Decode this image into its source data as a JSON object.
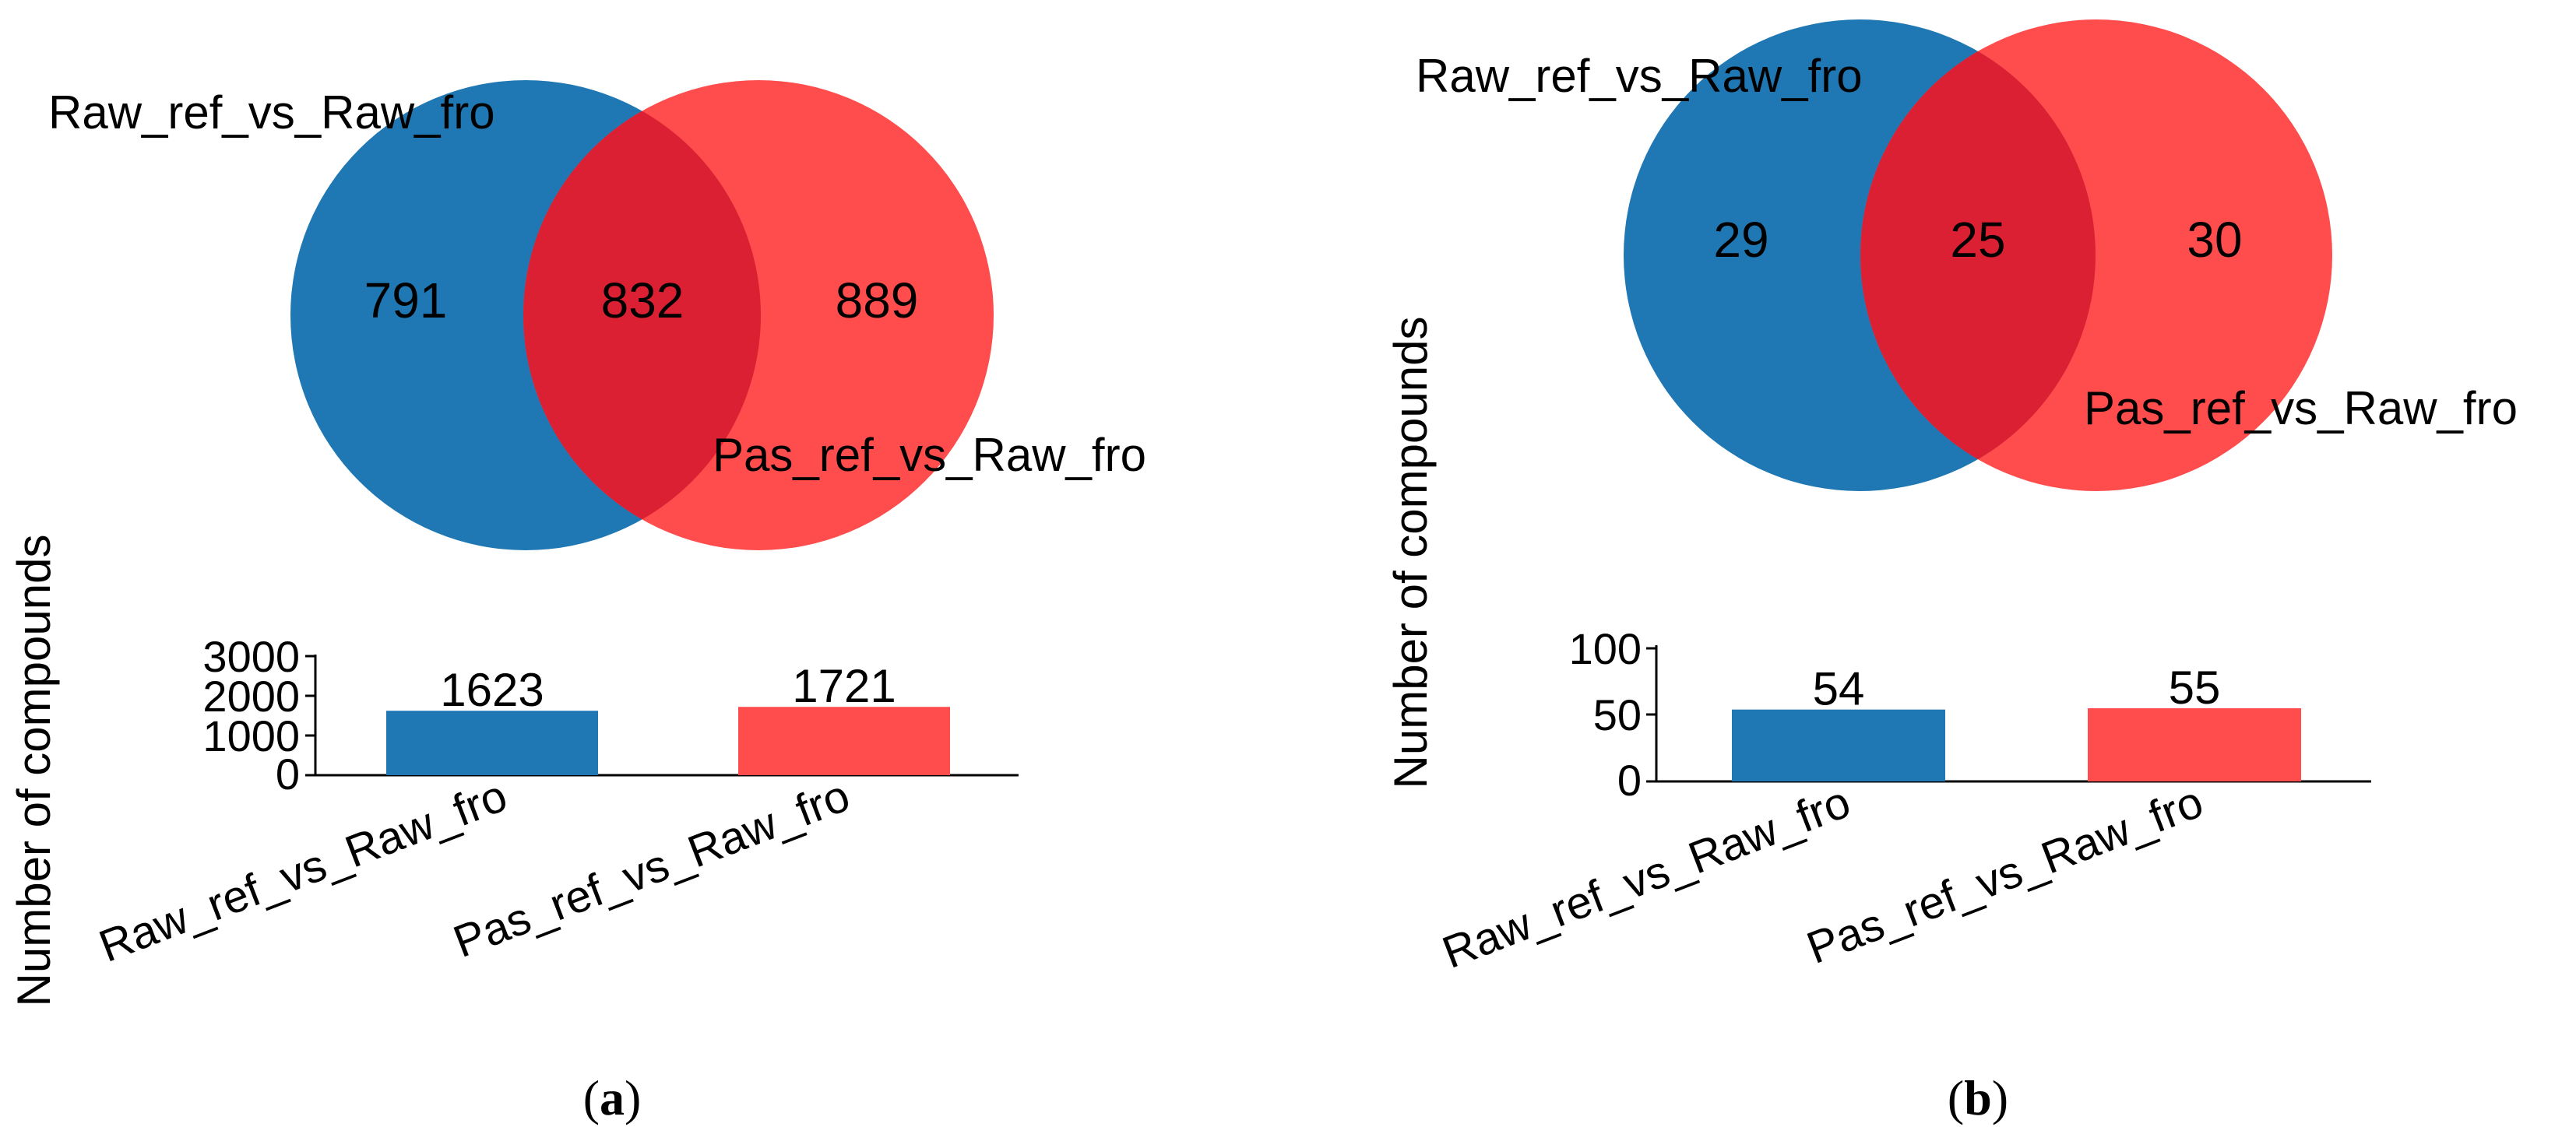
{
  "chart_data": [
    {
      "panel": "a",
      "type": "venn",
      "sets": [
        "Raw_ref_vs_Raw_fro",
        "Pas_ref_vs_Raw_fro"
      ],
      "only_left": 791,
      "intersection": 832,
      "only_right": 889,
      "colors": {
        "left": "#1f78b4",
        "right": "#ff4c4c",
        "overlap": "#dc2033"
      },
      "bar": {
        "type": "bar",
        "categories": [
          "Raw_ref_vs_Raw_fro",
          "Pas_ref_vs_Raw_fro"
        ],
        "values": [
          1623,
          1721
        ],
        "data_labels": [
          "1623",
          "1721"
        ],
        "ylabel": "Number of compounds",
        "ylim": [
          0,
          3000
        ],
        "yticks": [
          0,
          1000,
          2000,
          3000
        ],
        "ytick_labels": [
          "0",
          "1000",
          "2000",
          "3000"
        ],
        "colors": [
          "#1f78b4",
          "#ff4c4c"
        ]
      },
      "caption_letter": "a"
    },
    {
      "panel": "b",
      "type": "venn",
      "sets": [
        "Raw_ref_vs_Raw_fro",
        "Pas_ref_vs_Raw_fro"
      ],
      "only_left": 29,
      "intersection": 25,
      "only_right": 30,
      "colors": {
        "left": "#1f78b4",
        "right": "#ff4c4c",
        "overlap": "#dc2033"
      },
      "bar": {
        "type": "bar",
        "categories": [
          "Raw_ref_vs_Raw_fro",
          "Pas_ref_vs_Raw_fro"
        ],
        "values": [
          54,
          55
        ],
        "data_labels": [
          "54",
          "55"
        ],
        "ylabel": "Number of compounds",
        "ylim": [
          0,
          100
        ],
        "yticks": [
          0,
          50,
          100
        ],
        "ytick_labels": [
          "0",
          "50",
          "100"
        ],
        "colors": [
          "#1f78b4",
          "#ff4c4c"
        ]
      },
      "caption_letter": "b"
    }
  ]
}
